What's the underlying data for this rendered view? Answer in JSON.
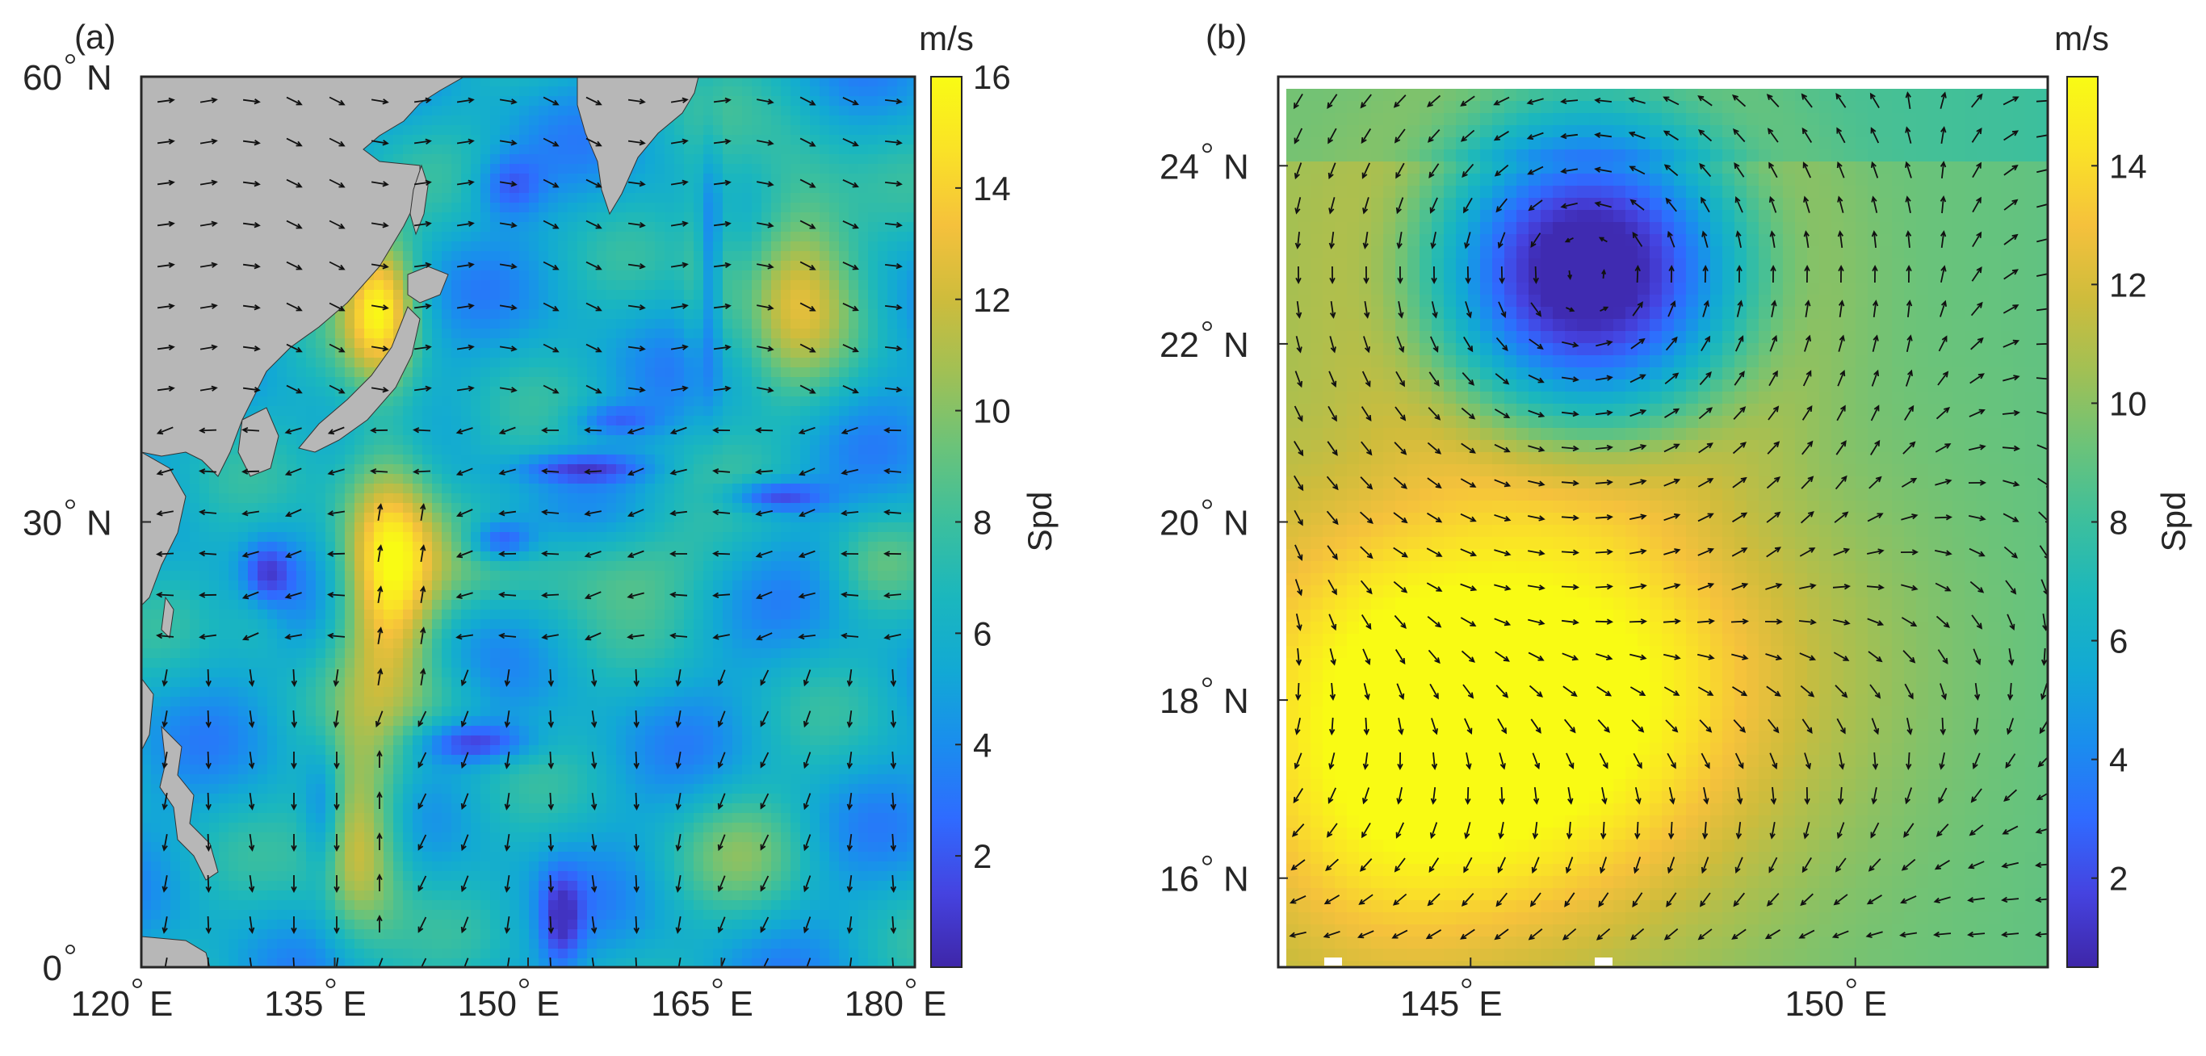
{
  "chart_data": [
    {
      "type": "heatmap",
      "panel_label": "(a)",
      "x_ticks": [
        {
          "deg": "120",
          "suffix": "E",
          "value": 120
        },
        {
          "deg": "135",
          "suffix": "E",
          "value": 135
        },
        {
          "deg": "150",
          "suffix": "E",
          "value": 150
        },
        {
          "deg": "165",
          "suffix": "E",
          "value": 165
        },
        {
          "deg": "180",
          "suffix": "E",
          "value": 180
        }
      ],
      "y_ticks": [
        {
          "deg": "60",
          "suffix": "N",
          "value": 60
        },
        {
          "deg": "30",
          "suffix": "N",
          "value": 30
        },
        {
          "deg": "0",
          "suffix": "",
          "value": 0
        }
      ],
      "xlim": [
        120,
        180
      ],
      "ylim": [
        0,
        60
      ],
      "colorbar": {
        "unit": "m/s",
        "label": "Spd",
        "ticks": [
          "2",
          "4",
          "6",
          "8",
          "10",
          "12",
          "14",
          "16"
        ],
        "range": [
          0,
          16
        ]
      },
      "land_color": "#b7b7b7"
    },
    {
      "type": "heatmap",
      "panel_label": "(b)",
      "x_ticks": [
        {
          "deg": "145",
          "suffix": "E",
          "value": 145
        },
        {
          "deg": "150",
          "suffix": "E",
          "value": 150
        }
      ],
      "y_ticks": [
        {
          "deg": "24",
          "suffix": "N",
          "value": 24
        },
        {
          "deg": "22",
          "suffix": "N",
          "value": 22
        },
        {
          "deg": "20",
          "suffix": "N",
          "value": 20
        },
        {
          "deg": "18",
          "suffix": "N",
          "value": 18
        },
        {
          "deg": "16",
          "suffix": "N",
          "value": 16
        }
      ],
      "xlim": [
        142.5,
        152.5
      ],
      "ylim": [
        15,
        25
      ],
      "colorbar": {
        "unit": "m/s",
        "label": "Spd",
        "ticks": [
          "2",
          "4",
          "6",
          "8",
          "10",
          "12",
          "14"
        ],
        "range": [
          0.5,
          15.5
        ]
      },
      "cyclone_center": {
        "lon": 146.5,
        "lat": 22.8
      }
    }
  ],
  "colormap": [
    "#3e26a8",
    "#4543e0",
    "#2f6bff",
    "#1a8dee",
    "#12a9d4",
    "#1bb7bd",
    "#3cbf9d",
    "#6ac37a",
    "#a0c055",
    "#cebc3c",
    "#f5c13c",
    "#fae227",
    "#f9fb14"
  ]
}
